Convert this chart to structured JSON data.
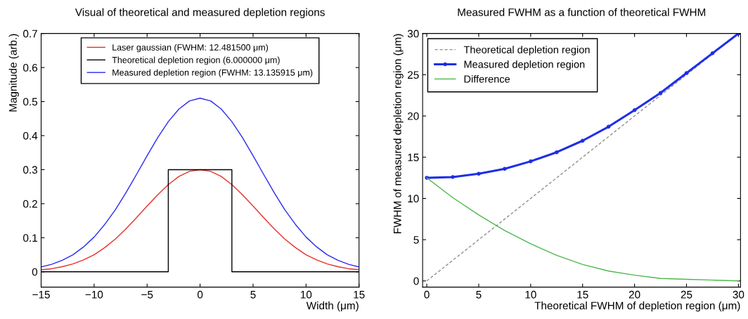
{
  "chart_data": [
    {
      "type": "line",
      "title": "Visual of theoretical and measured depletion regions",
      "xlabel": "Width (μm)",
      "ylabel": "Magnitude (arb.)",
      "xlim": [
        -15,
        15
      ],
      "ylim": [
        -0.045,
        0.7
      ],
      "xticks": [
        {
          "value": -15,
          "label": "−15"
        },
        {
          "value": -10,
          "label": "−10"
        },
        {
          "value": -5,
          "label": "−5"
        },
        0,
        5,
        10,
        15
      ],
      "yticks": [
        0,
        0.1,
        0.2,
        0.3,
        0.4,
        0.5,
        0.6,
        0.7
      ],
      "legend": "top",
      "grid": false,
      "line_style": "solid",
      "marker": "none",
      "series": [
        {
          "name": "Laser gaussian (FWHM: 12.481500 μm)",
          "color": "#e8302a",
          "x": [
            -15,
            -14,
            -13,
            -12,
            -11,
            -10,
            -9,
            -8,
            -7,
            -6,
            -5,
            -4,
            -3,
            -2,
            -1,
            0,
            1,
            2,
            3,
            4,
            5,
            6,
            7,
            8,
            9,
            10,
            11,
            12,
            13,
            14,
            15
          ],
          "values": [
            0.006,
            0.009,
            0.015,
            0.023,
            0.035,
            0.05,
            0.071,
            0.096,
            0.126,
            0.159,
            0.193,
            0.226,
            0.256,
            0.28,
            0.295,
            0.3,
            0.295,
            0.28,
            0.256,
            0.226,
            0.193,
            0.159,
            0.126,
            0.096,
            0.071,
            0.05,
            0.035,
            0.023,
            0.015,
            0.009,
            0.006
          ]
        },
        {
          "name": "Theoretical depletion region (6.000000 μm)",
          "color": "#000000",
          "x": [
            -15,
            -3,
            -3,
            3,
            3,
            15
          ],
          "values": [
            0,
            0,
            0.3,
            0.3,
            0,
            0
          ]
        },
        {
          "name": "Measured depletion region (FWHM: 13.135915 μm)",
          "color": "#2a2af0",
          "x": [
            -15,
            -14,
            -13,
            -12,
            -11,
            -10,
            -9,
            -8,
            -7,
            -6,
            -5,
            -4,
            -3,
            -2,
            -1,
            0,
            1,
            2,
            3,
            4,
            5,
            6,
            7,
            8,
            9,
            10,
            11,
            12,
            13,
            14,
            15
          ],
          "values": [
            0.014,
            0.022,
            0.034,
            0.05,
            0.073,
            0.102,
            0.139,
            0.182,
            0.232,
            0.286,
            0.341,
            0.394,
            0.441,
            0.478,
            0.502,
            0.51,
            0.502,
            0.478,
            0.441,
            0.394,
            0.341,
            0.286,
            0.232,
            0.182,
            0.139,
            0.102,
            0.073,
            0.05,
            0.034,
            0.022,
            0.014
          ]
        }
      ]
    },
    {
      "type": "line",
      "title": "Measured FWHM as a function of theoretical FWHM",
      "xlabel": "Theoretical FWHM of depletion region (μm)",
      "ylabel": "FWHM of measured depletion region (μm)",
      "xlim": [
        -0.4,
        30.2
      ],
      "ylim": [
        -0.75,
        30
      ],
      "xticks": [
        0,
        5,
        10,
        15,
        20,
        25,
        30
      ],
      "yticks": [
        0,
        5,
        10,
        15,
        20,
        25,
        30
      ],
      "legend": "top left",
      "grid": false,
      "series": [
        {
          "name": "Theoretical depletion region",
          "color": "#909090",
          "line_style": "dashed",
          "marker": "none",
          "x": [
            0,
            30
          ],
          "values": [
            0,
            30
          ]
        },
        {
          "name": "Measured depletion region",
          "color": "#1f2ee8",
          "line_style": "solid",
          "marker": "circle",
          "x": [
            0,
            2.5,
            5,
            7.5,
            10,
            12.5,
            15,
            17.5,
            20,
            22.5,
            25,
            27.5,
            30
          ],
          "values": [
            12.5,
            12.6,
            13.0,
            13.6,
            14.5,
            15.6,
            17.0,
            18.7,
            20.7,
            22.8,
            25.2,
            27.6,
            30
          ]
        },
        {
          "name": "Difference",
          "color": "#4cb84c",
          "line_style": "solid",
          "marker": "none",
          "x": [
            0,
            2.5,
            5,
            7.5,
            10,
            12.5,
            15,
            17.5,
            20,
            22.5,
            25,
            27.5,
            30
          ],
          "values": [
            12.5,
            10.1,
            8.0,
            6.1,
            4.5,
            3.1,
            2.0,
            1.2,
            0.7,
            0.3,
            0.2,
            0.1,
            0.0
          ]
        }
      ]
    }
  ]
}
